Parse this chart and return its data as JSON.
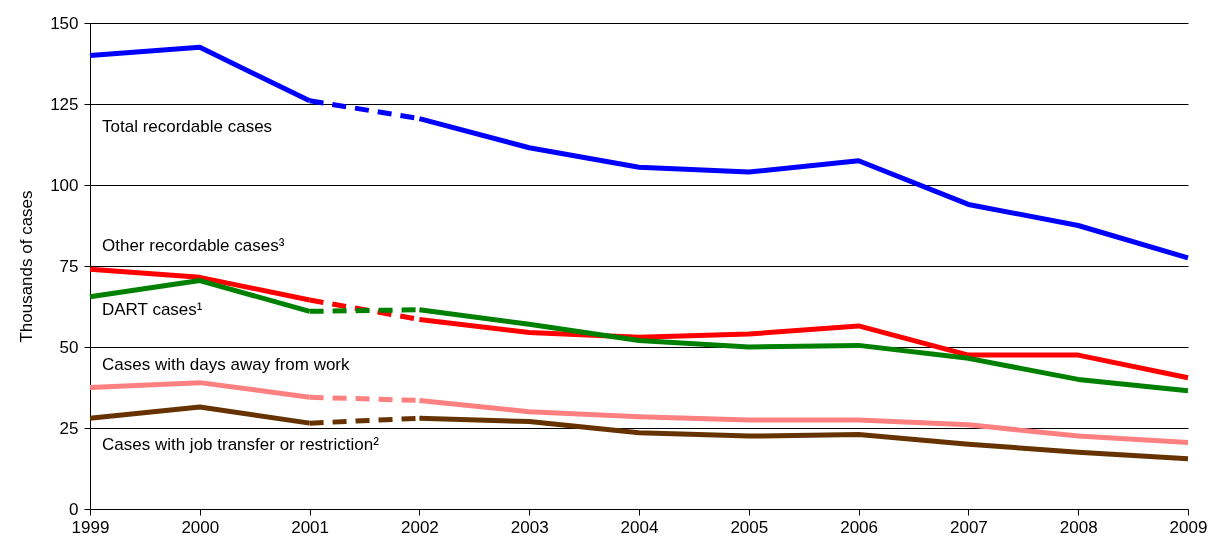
{
  "chart_data": {
    "type": "line",
    "ylabel": "Thousands of cases",
    "xlim": [
      1999,
      2009
    ],
    "xticks": [
      1999,
      2000,
      2001,
      2002,
      2003,
      2004,
      2005,
      2006,
      2007,
      2008,
      2009
    ],
    "ylim": [
      0,
      150
    ],
    "yticks": [
      0,
      25,
      50,
      75,
      100,
      125,
      150
    ],
    "grid": "y",
    "line_style": "solid",
    "marker": "none",
    "series": [
      {
        "name": "Total recordable cases",
        "color": "#0000ff",
        "x": [
          1999,
          2000,
          2001
        ],
        "values": [
          140,
          142.5,
          126
        ]
      },
      {
        "color": "#0000ff",
        "line_style": "dashed",
        "x": [
          2001,
          2002
        ],
        "values": [
          126,
          120.5
        ]
      },
      {
        "color": "#0000ff",
        "x": [
          2002,
          2003,
          2004,
          2005,
          2006,
          2007,
          2008,
          2009
        ],
        "values": [
          120.5,
          111.5,
          105.5,
          104,
          107.5,
          94,
          87.5,
          77.5
        ]
      },
      {
        "name": "Other recordable cases³",
        "color": "#ff0000",
        "x": [
          1999,
          2000,
          2001
        ],
        "values": [
          74,
          71.5,
          64.5
        ]
      },
      {
        "color": "#ff0000",
        "line_style": "dashed",
        "x": [
          2001,
          2002
        ],
        "values": [
          64.5,
          58.5
        ]
      },
      {
        "color": "#ff0000",
        "x": [
          2002,
          2003,
          2004,
          2005,
          2006,
          2007,
          2008,
          2009
        ],
        "values": [
          58.5,
          54.5,
          53,
          54,
          56.5,
          47.5,
          47.5,
          40.5
        ]
      },
      {
        "name": "DART cases¹",
        "color": "#008000",
        "x": [
          1999,
          2000,
          2001
        ],
        "values": [
          65.5,
          70.5,
          61
        ]
      },
      {
        "color": "#008000",
        "line_style": "dashed",
        "x": [
          2001,
          2002
        ],
        "values": [
          61,
          61.5
        ]
      },
      {
        "color": "#008000",
        "x": [
          2002,
          2003,
          2004,
          2005,
          2006,
          2007,
          2008,
          2009
        ],
        "values": [
          61.5,
          57,
          52,
          50,
          50.5,
          46.5,
          40,
          36.5
        ]
      },
      {
        "name": "Cases with days away from work",
        "color": "#ff8080",
        "x": [
          1999,
          2000,
          2001
        ],
        "values": [
          37.5,
          39,
          34.5
        ]
      },
      {
        "color": "#ff8080",
        "line_style": "dashed",
        "x": [
          2001,
          2002
        ],
        "values": [
          34.5,
          33.5
        ]
      },
      {
        "color": "#ff8080",
        "x": [
          2002,
          2003,
          2004,
          2005,
          2006,
          2007,
          2008,
          2009
        ],
        "values": [
          33.5,
          30,
          28.5,
          27.5,
          27.5,
          26,
          22.5,
          20.5
        ]
      },
      {
        "name": "Cases with job transfer or restriction²",
        "color": "#663300",
        "x": [
          1999,
          2000,
          2001
        ],
        "values": [
          28,
          31.5,
          26.5
        ]
      },
      {
        "color": "#663300",
        "line_style": "dashed",
        "x": [
          2001,
          2002
        ],
        "values": [
          26.5,
          28
        ]
      },
      {
        "color": "#663300",
        "x": [
          2002,
          2003,
          2004,
          2005,
          2006,
          2007,
          2008,
          2009
        ],
        "values": [
          28,
          27,
          23.5,
          22.5,
          23,
          20,
          17.5,
          15.5
        ]
      }
    ]
  }
}
